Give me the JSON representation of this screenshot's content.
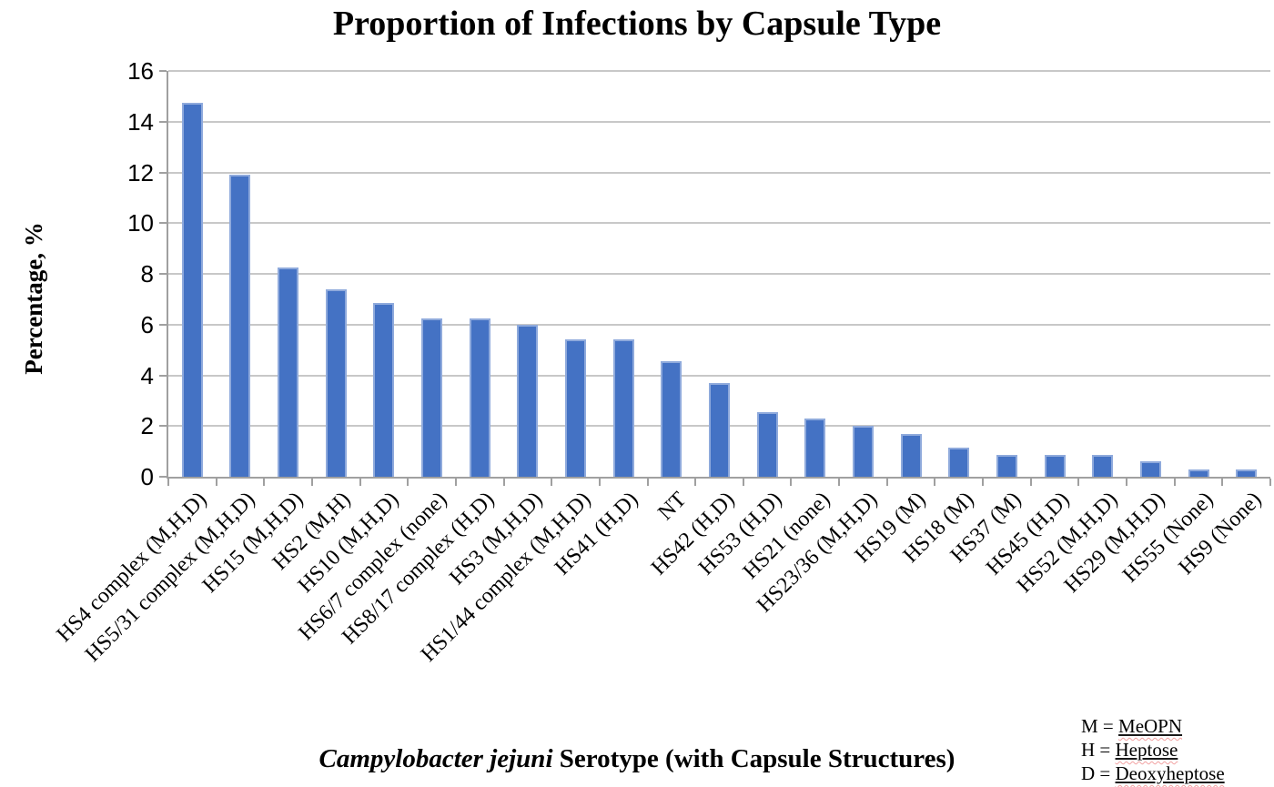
{
  "title": "Proportion of Infections by Capsule Type",
  "y_axis": {
    "label": "Percentage, %"
  },
  "x_axis": {
    "label_italic": "Campylobacter jejuni",
    "label_rest": " Serotype (with Capsule Structures)"
  },
  "legend": {
    "items": [
      {
        "prefix": "M = ",
        "term": "MeOPN"
      },
      {
        "prefix": "H = ",
        "term": "Heptose"
      },
      {
        "prefix": "D = ",
        "term": "Deoxyheptose"
      }
    ]
  },
  "chart_data": {
    "type": "bar",
    "title": "Proportion of Infections by Capsule Type",
    "xlabel": "Campylobacter jejuni Serotype (with Capsule Structures)",
    "ylabel": "Percentage, %",
    "ylim": [
      0,
      16
    ],
    "ytick_step": 2,
    "grid": true,
    "legend_position": "bottom-right",
    "categories": [
      "HS4 complex (M,H,D)",
      "HS5/31 complex (M,H,D)",
      "HS15 (M,H,D)",
      "HS2 (M,H)",
      "HS10 (M,H,D)",
      "HS6/7 complex (none)",
      "HS8/17 complex (H,D)",
      "HS3 (M,H,D)",
      "HS1/44 complex (M,H,D)",
      "HS41 (H,D)",
      "NT",
      "HS42 (H,D)",
      "HS53 (H,D)",
      "HS21 (none)",
      "HS23/36 (M,H,D)",
      "HS19 (M)",
      "HS18 (M)",
      "HS37 (M)",
      "HS45 (H,D)",
      "HS52 (M,H,D)",
      "HS29 (M,H,D)",
      "HS55 (None)",
      "HS9 (None)"
    ],
    "values": [
      14.75,
      11.9,
      8.25,
      7.4,
      6.85,
      6.25,
      6.25,
      6.0,
      5.4,
      5.4,
      4.55,
      3.7,
      2.55,
      2.3,
      2.0,
      1.7,
      1.15,
      0.85,
      0.85,
      0.85,
      0.6,
      0.3,
      0.3
    ],
    "bar_color": "#4472C4",
    "bar_border_color": "#8FAADC",
    "gridline_color": "#C8C8C8",
    "axis_color": "#A0A0A0"
  }
}
